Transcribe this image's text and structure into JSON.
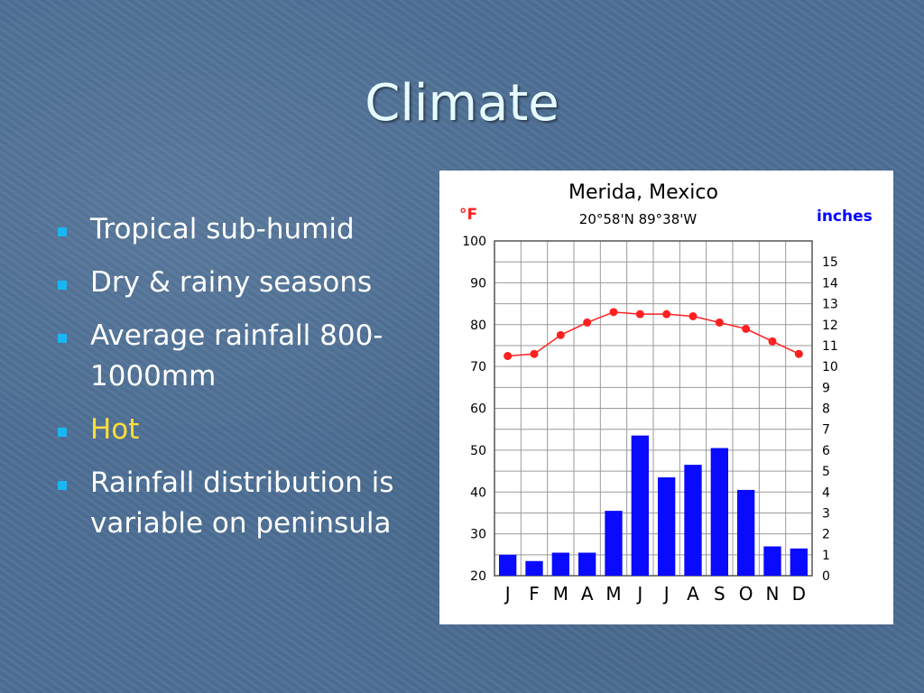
{
  "slide": {
    "title": "Climate",
    "bullets": [
      {
        "text": "Tropical sub-humid"
      },
      {
        "text": "Dry & rainy seasons"
      },
      {
        "text": "Average rainfall 800-1000mm"
      },
      {
        "text": "Hot",
        "color": "#ffde3a"
      },
      {
        "text": "Rainfall distribution is variable on peninsula"
      }
    ]
  },
  "colors": {
    "background": "#4d6f95",
    "title": "#e6fbff",
    "bullet_marker": "#19b6f2",
    "temperature": "#ff2020",
    "rainfall": "#0a0aff",
    "inches_label": "#0000ff"
  },
  "chart_data": {
    "type": "bar",
    "title": "Merida, Mexico",
    "subtitle": "20°58'N 89°38'W",
    "left_unit": "°F",
    "right_unit": "inches",
    "categories": [
      "J",
      "F",
      "M",
      "A",
      "M",
      "J",
      "J",
      "A",
      "S",
      "O",
      "N",
      "D"
    ],
    "series": [
      {
        "type": "line",
        "axis": "left",
        "values": [
          72.5,
          73,
          77.5,
          80.5,
          83,
          82.5,
          82.5,
          82,
          80.5,
          79,
          76,
          73
        ]
      },
      {
        "type": "bar",
        "axis": "right",
        "values": [
          1,
          0.7,
          1.1,
          1.1,
          3.1,
          6.7,
          4.7,
          5.3,
          6.1,
          4.1,
          1.4,
          1.3
        ]
      }
    ],
    "left_axis": {
      "min": 20,
      "max": 100,
      "ticks": [
        20,
        30,
        40,
        50,
        60,
        70,
        80,
        90,
        100
      ]
    },
    "right_axis": {
      "min": 0,
      "max": 16,
      "ticks": [
        0,
        1,
        2,
        3,
        4,
        5,
        6,
        7,
        8,
        9,
        10,
        11,
        12,
        13,
        14,
        15
      ]
    },
    "grid": true
  }
}
